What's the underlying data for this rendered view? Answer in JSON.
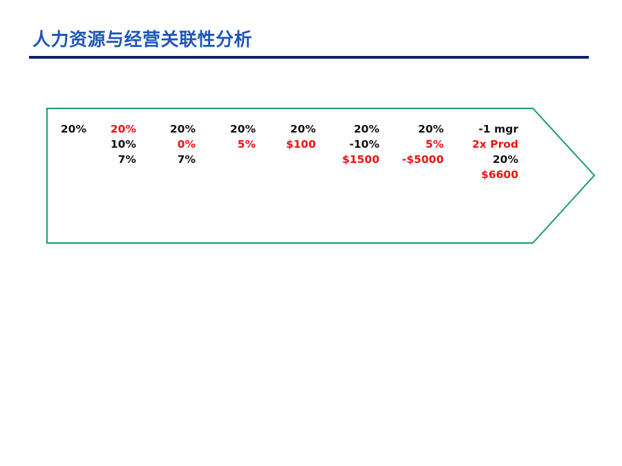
{
  "slide": {
    "title": "人力资源与经营关联性分析"
  },
  "colors": {
    "title": "#1f56b8",
    "rule": "#0e1f66",
    "arrow_border": "#1a9a6c",
    "red": "#ee1111",
    "black": "#111111"
  },
  "columns": [
    {
      "lines": [
        {
          "text": "20%",
          "color": "black"
        }
      ]
    },
    {
      "lines": [
        {
          "text": "20%",
          "color": "red"
        },
        {
          "text": "10%",
          "color": "black"
        },
        {
          "text": "7%",
          "color": "black"
        }
      ]
    },
    {
      "lines": [
        {
          "text": "20%",
          "color": "black"
        },
        {
          "text": "0%",
          "color": "red"
        },
        {
          "text": "7%",
          "color": "black"
        }
      ]
    },
    {
      "lines": [
        {
          "text": "20%",
          "color": "black"
        },
        {
          "text": "5%",
          "color": "red"
        }
      ]
    },
    {
      "lines": [
        {
          "text": "20%",
          "color": "black"
        },
        {
          "text": "$100",
          "color": "red"
        }
      ]
    },
    {
      "lines": [
        {
          "text": "20%",
          "color": "black"
        },
        {
          "text": "-10%",
          "color": "black"
        },
        {
          "text": "$1500",
          "color": "red"
        }
      ]
    },
    {
      "lines": [
        {
          "text": "20%",
          "color": "black"
        },
        {
          "text": "5%",
          "color": "red"
        },
        {
          "text": "-$5000",
          "color": "red"
        }
      ]
    },
    {
      "lines": [
        {
          "text": "-1 mgr",
          "color": "black"
        },
        {
          "text": "2x Prod",
          "color": "red"
        },
        {
          "text": "20%",
          "color": "black"
        },
        {
          "text": "$6600",
          "color": "red"
        }
      ]
    }
  ]
}
